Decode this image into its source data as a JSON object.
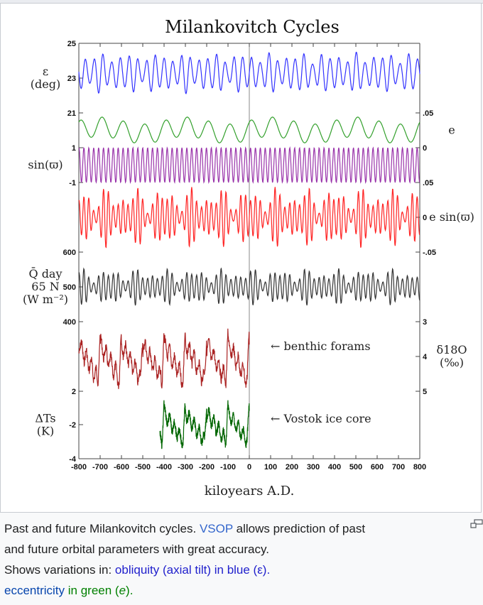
{
  "figure": {
    "caption": {
      "line1_before": "Past and future Milankovitch cycles. ",
      "line1_link": "VSOP",
      "line1_after": " allows prediction of past",
      "line2": "and future orbital parameters with great accuracy.",
      "line3_before": "Shows variations in: ",
      "line3_colored": "obliquity (axial tilt) in blue (ε).",
      "line4_link": "eccentricity",
      "line4_colored_before": " in green (",
      "line4_italic": "e",
      "line4_colored_after": ").",
      "colors": {
        "link": "#3366cc",
        "obliquity": "#1f1fcc",
        "eccentricity": "#008000"
      }
    },
    "expand_icon": "enlarge-icon"
  },
  "chart_data": {
    "type": "line",
    "title": "Milankovitch Cycles",
    "xlabel": "kiloyears A.D.",
    "xlim": [
      -800,
      800
    ],
    "x_ticks": [
      "-800",
      "-700",
      "-600",
      "-500",
      "-400",
      "-300",
      "-200",
      "-100",
      "0",
      "100",
      "200",
      "300",
      "400",
      "500",
      "600",
      "700",
      "800"
    ],
    "annotations": [
      "← benthic forams",
      "← Vostok ice core"
    ],
    "panels": [
      {
        "name": "obliquity",
        "label": "ε (deg)",
        "label_lines": [
          "ε",
          "(deg)"
        ],
        "side": "left",
        "color": "#3333ff",
        "ylim": [
          21,
          25
        ],
        "ticks": [
          "25",
          "23",
          "21"
        ],
        "period_kyr": 41,
        "mean": 23.3,
        "amp_range": [
          0.5,
          1.2
        ]
      },
      {
        "name": "eccentricity",
        "label": "e",
        "label_lines": [
          "e"
        ],
        "side": "right",
        "color": "#33a02c",
        "ylim": [
          0,
          0.05
        ],
        "ticks": [
          ".05",
          "0"
        ],
        "period_kyr": 100,
        "mean": 0.025,
        "amp_range": [
          0.005,
          0.02
        ]
      },
      {
        "name": "precession-angle",
        "label": "sin(ϖ)",
        "label_lines": [
          "sin(ϖ)"
        ],
        "side": "left",
        "color": "#9933aa",
        "ylim": [
          -1,
          1
        ],
        "ticks": [
          "1",
          "-1"
        ],
        "period_kyr": 23,
        "mean": 0,
        "amp_range": [
          1,
          1
        ]
      },
      {
        "name": "precession-index",
        "label": "e sin(ϖ)",
        "label_lines": [
          "e sin(ϖ)"
        ],
        "side": "right",
        "color": "#ff2222",
        "ylim": [
          -0.05,
          0.05
        ],
        "ticks": [
          ".05",
          "0",
          "-.05"
        ],
        "period_kyr": 23,
        "mean": 0,
        "amp_range": [
          0.005,
          0.045
        ]
      },
      {
        "name": "insolation-65N",
        "label": "Q̄ day 65 N (W m⁻²)",
        "label_lines": [
          "Q̄ day",
          "65 N",
          "(W m⁻²)"
        ],
        "side": "left",
        "color": "#333333",
        "ylim": [
          400,
          600
        ],
        "ticks": [
          "600",
          "500",
          "400"
        ],
        "period_kyr": 23,
        "mean": 500,
        "amp_range": [
          10,
          55
        ]
      },
      {
        "name": "benthic-d18O",
        "label": "δ18O (‰)",
        "label_lines": [
          "δ18O",
          "(‰)"
        ],
        "side": "right",
        "color": "#aa2222",
        "ylim": [
          3,
          5
        ],
        "ticks": [
          "3",
          "4",
          "5"
        ],
        "x_range": [
          -800,
          0
        ],
        "inverted": true
      },
      {
        "name": "vostok-dTs",
        "label": "ΔTs (K)",
        "label_lines": [
          "ΔTs",
          "(K)"
        ],
        "side": "left",
        "color": "#006600",
        "ylim": [
          -4,
          2
        ],
        "ticks": [
          "2",
          "-2",
          "-4"
        ],
        "x_range": [
          -420,
          0
        ]
      }
    ]
  }
}
